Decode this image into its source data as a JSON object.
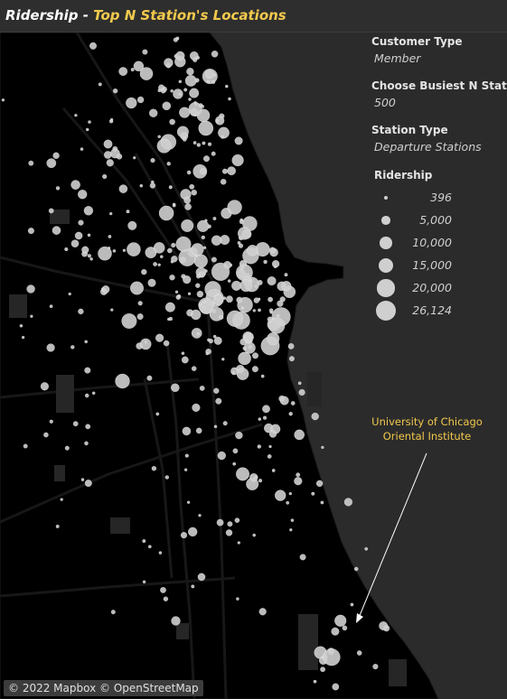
{
  "title": {
    "prefix": "Ridership - ",
    "highlight": "Top N Station's Locations"
  },
  "filters": {
    "customer_type": {
      "label": "Customer Type",
      "value": "Member"
    },
    "busiest_n": {
      "label": "Choose Busiest N Stations",
      "value": "500"
    },
    "station_type": {
      "label": "Station Type",
      "value": "Departure Stations"
    }
  },
  "legend": {
    "title": "Ridership",
    "items": [
      {
        "label": "396",
        "value": 396
      },
      {
        "label": "5,000",
        "value": 5000
      },
      {
        "label": "10,000",
        "value": 10000
      },
      {
        "label": "15,000",
        "value": 15000
      },
      {
        "label": "20,000",
        "value": 20000
      },
      {
        "label": "26,124",
        "value": 26124
      }
    ]
  },
  "annotation": {
    "line1": "University of Chicago",
    "line2": "Oriental Institute"
  },
  "attribution": "© 2022 Mapbox © OpenStreetMap",
  "colors": {
    "background": "#2b2b2b",
    "land": "#000000",
    "water": "#2b2b2b",
    "roads": "#161616",
    "stations": "#cfcfcf",
    "accent": "#f2c94c",
    "arrow": "#ffffff"
  }
}
